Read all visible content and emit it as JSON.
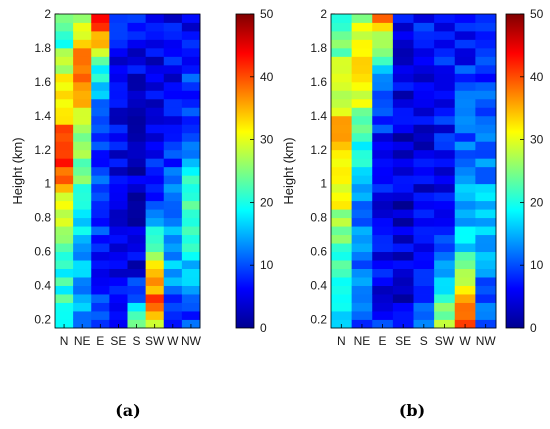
{
  "chart_data": [
    {
      "type": "heatmap",
      "panel_label": "(a)",
      "ylabel": "Height (km)",
      "categories": [
        "N",
        "NE",
        "E",
        "SE",
        "S",
        "SW",
        "W",
        "NW"
      ],
      "ylim": [
        0.15,
        2.0
      ],
      "yticks": [
        "0.2",
        "0.4",
        "0.6",
        "0.8",
        "1",
        "1.2",
        "1.4",
        "1.6",
        "1.8",
        "2"
      ],
      "color_range": [
        0,
        50
      ],
      "colorbar_ticks": [
        "0",
        "10",
        "20",
        "30",
        "40",
        "50"
      ],
      "colormap": "jet",
      "profiles": [
        [
          [
            0.15,
            18
          ],
          [
            0.3,
            21
          ],
          [
            0.5,
            21
          ],
          [
            0.7,
            24
          ],
          [
            0.9,
            30
          ],
          [
            1.05,
            38
          ],
          [
            1.2,
            45
          ],
          [
            1.35,
            36
          ],
          [
            1.5,
            32
          ],
          [
            1.7,
            28
          ],
          [
            1.85,
            20
          ],
          [
            2.0,
            22
          ]
        ],
        [
          [
            0.15,
            12
          ],
          [
            0.3,
            14
          ],
          [
            0.5,
            15
          ],
          [
            0.8,
            18
          ],
          [
            1.0,
            22
          ],
          [
            1.2,
            26
          ],
          [
            1.4,
            30
          ],
          [
            1.6,
            37
          ],
          [
            1.75,
            38
          ],
          [
            1.9,
            30
          ],
          [
            2.0,
            22
          ]
        ],
        [
          [
            0.15,
            9
          ],
          [
            0.4,
            8
          ],
          [
            0.8,
            8
          ],
          [
            1.1,
            9
          ],
          [
            1.3,
            11
          ],
          [
            1.5,
            14
          ],
          [
            1.7,
            22
          ],
          [
            1.85,
            34
          ],
          [
            1.95,
            44
          ],
          [
            2.0,
            48
          ]
        ],
        [
          [
            0.15,
            5
          ],
          [
            0.5,
            5
          ],
          [
            1.0,
            5
          ],
          [
            1.5,
            6
          ],
          [
            1.8,
            7
          ],
          [
            2.0,
            9
          ]
        ],
        [
          [
            0.15,
            29
          ],
          [
            0.25,
            20
          ],
          [
            0.35,
            10
          ],
          [
            0.5,
            5
          ],
          [
            1.0,
            4
          ],
          [
            1.5,
            4
          ],
          [
            2.0,
            6
          ]
        ],
        [
          [
            0.15,
            28
          ],
          [
            0.3,
            40
          ],
          [
            0.45,
            35
          ],
          [
            0.55,
            28
          ],
          [
            0.7,
            18
          ],
          [
            0.9,
            10
          ],
          [
            1.2,
            6
          ],
          [
            1.6,
            5
          ],
          [
            2.0,
            5
          ]
        ],
        [
          [
            0.15,
            6
          ],
          [
            0.3,
            10
          ],
          [
            0.5,
            14
          ],
          [
            0.7,
            16
          ],
          [
            0.9,
            12
          ],
          [
            1.2,
            8
          ],
          [
            1.6,
            6
          ],
          [
            2.0,
            6
          ]
        ],
        [
          [
            0.15,
            8
          ],
          [
            0.3,
            12
          ],
          [
            0.5,
            16
          ],
          [
            0.7,
            22
          ],
          [
            0.9,
            24
          ],
          [
            1.1,
            16
          ],
          [
            1.4,
            10
          ],
          [
            1.8,
            7
          ],
          [
            2.0,
            6
          ]
        ]
      ]
    },
    {
      "type": "heatmap",
      "panel_label": "(b)",
      "ylabel": "Height (km)",
      "categories": [
        "N",
        "NE",
        "E",
        "SE",
        "S",
        "SW",
        "W",
        "NW"
      ],
      "ylim": [
        0.15,
        2.0
      ],
      "yticks": [
        "0.2",
        "0.4",
        "0.6",
        "0.8",
        "1",
        "1.2",
        "1.4",
        "1.6",
        "1.8",
        "2"
      ],
      "color_range": [
        0,
        50
      ],
      "colorbar_ticks": [
        "0",
        "10",
        "20",
        "30",
        "40",
        "50"
      ],
      "colormap": "jet",
      "profiles": [
        [
          [
            0.15,
            14
          ],
          [
            0.3,
            17
          ],
          [
            0.5,
            20
          ],
          [
            0.7,
            24
          ],
          [
            0.9,
            30
          ],
          [
            1.1,
            33
          ],
          [
            1.3,
            34
          ],
          [
            1.5,
            31
          ],
          [
            1.7,
            27
          ],
          [
            1.9,
            23
          ],
          [
            2.0,
            20
          ]
        ],
        [
          [
            0.15,
            10
          ],
          [
            0.3,
            11
          ],
          [
            0.5,
            12
          ],
          [
            0.8,
            13
          ],
          [
            1.0,
            15
          ],
          [
            1.2,
            20
          ],
          [
            1.4,
            26
          ],
          [
            1.6,
            30
          ],
          [
            1.8,
            33
          ],
          [
            1.95,
            28
          ],
          [
            2.0,
            24
          ]
        ],
        [
          [
            0.15,
            7
          ],
          [
            0.5,
            6
          ],
          [
            1.0,
            6
          ],
          [
            1.4,
            8
          ],
          [
            1.6,
            12
          ],
          [
            1.8,
            24
          ],
          [
            1.95,
            36
          ],
          [
            2.0,
            40
          ]
        ],
        [
          [
            0.15,
            5
          ],
          [
            0.5,
            4
          ],
          [
            1.0,
            4
          ],
          [
            1.5,
            5
          ],
          [
            2.0,
            6
          ]
        ],
        [
          [
            0.15,
            14
          ],
          [
            0.3,
            10
          ],
          [
            0.5,
            6
          ],
          [
            1.0,
            4
          ],
          [
            1.5,
            5
          ],
          [
            1.9,
            8
          ],
          [
            2.0,
            7
          ]
        ],
        [
          [
            0.15,
            26
          ],
          [
            0.3,
            22
          ],
          [
            0.5,
            14
          ],
          [
            0.7,
            8
          ],
          [
            1.0,
            6
          ],
          [
            1.5,
            7
          ],
          [
            2.0,
            6
          ]
        ],
        [
          [
            0.15,
            42
          ],
          [
            0.3,
            38
          ],
          [
            0.45,
            26
          ],
          [
            0.6,
            18
          ],
          [
            0.8,
            16
          ],
          [
            1.0,
            14
          ],
          [
            1.2,
            12
          ],
          [
            1.4,
            10
          ],
          [
            1.7,
            8
          ],
          [
            2.0,
            6
          ]
        ],
        [
          [
            0.15,
            8
          ],
          [
            0.4,
            12
          ],
          [
            0.6,
            15
          ],
          [
            0.8,
            16
          ],
          [
            1.0,
            14
          ],
          [
            1.3,
            11
          ],
          [
            1.7,
            8
          ],
          [
            2.0,
            6
          ]
        ]
      ]
    }
  ]
}
